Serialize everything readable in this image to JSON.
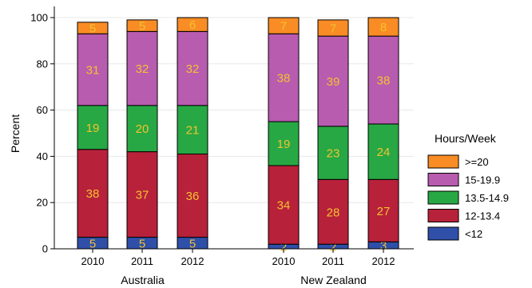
{
  "chart_data": {
    "type": "bar",
    "stacked": true,
    "ylabel": "Percent",
    "ylim": [
      0,
      100
    ],
    "yticks": [
      0,
      20,
      40,
      60,
      80,
      100
    ],
    "grid": true,
    "legend_position": "right",
    "legend_title": "Hours/Week",
    "groups": [
      {
        "name": "Australia",
        "categories": [
          "2010",
          "2011",
          "2012"
        ]
      },
      {
        "name": "New Zealand",
        "categories": [
          "2010",
          "2011",
          "2012"
        ]
      }
    ],
    "series": [
      {
        "name": "<12",
        "color": "#2f4fa8",
        "values": [
          5,
          5,
          5,
          2,
          2,
          3
        ],
        "labels": [
          "5",
          "5",
          "5",
          "2",
          "2",
          "3"
        ]
      },
      {
        "name": "12-13.4",
        "color": "#b8213a",
        "values": [
          38,
          37,
          36,
          34,
          28,
          27
        ],
        "labels": [
          "38",
          "37",
          "36",
          "34",
          "28",
          "27"
        ]
      },
      {
        "name": "13.5-14.9",
        "color": "#27a844",
        "values": [
          19,
          20,
          21,
          19,
          23,
          24
        ],
        "labels": [
          "19",
          "20",
          "21",
          "19",
          "23",
          "24"
        ]
      },
      {
        "name": "15-19.9",
        "color": "#b85cb0",
        "values": [
          31,
          32,
          32,
          38,
          39,
          38
        ],
        "labels": [
          "31",
          "32",
          "32",
          "38",
          "39",
          "38"
        ]
      },
      {
        "name": ">=20",
        "color": "#f98c24",
        "values": [
          5,
          5,
          6,
          7,
          7,
          8
        ],
        "labels": [
          "5",
          "5",
          "6",
          "7",
          "7",
          "8"
        ]
      }
    ]
  }
}
